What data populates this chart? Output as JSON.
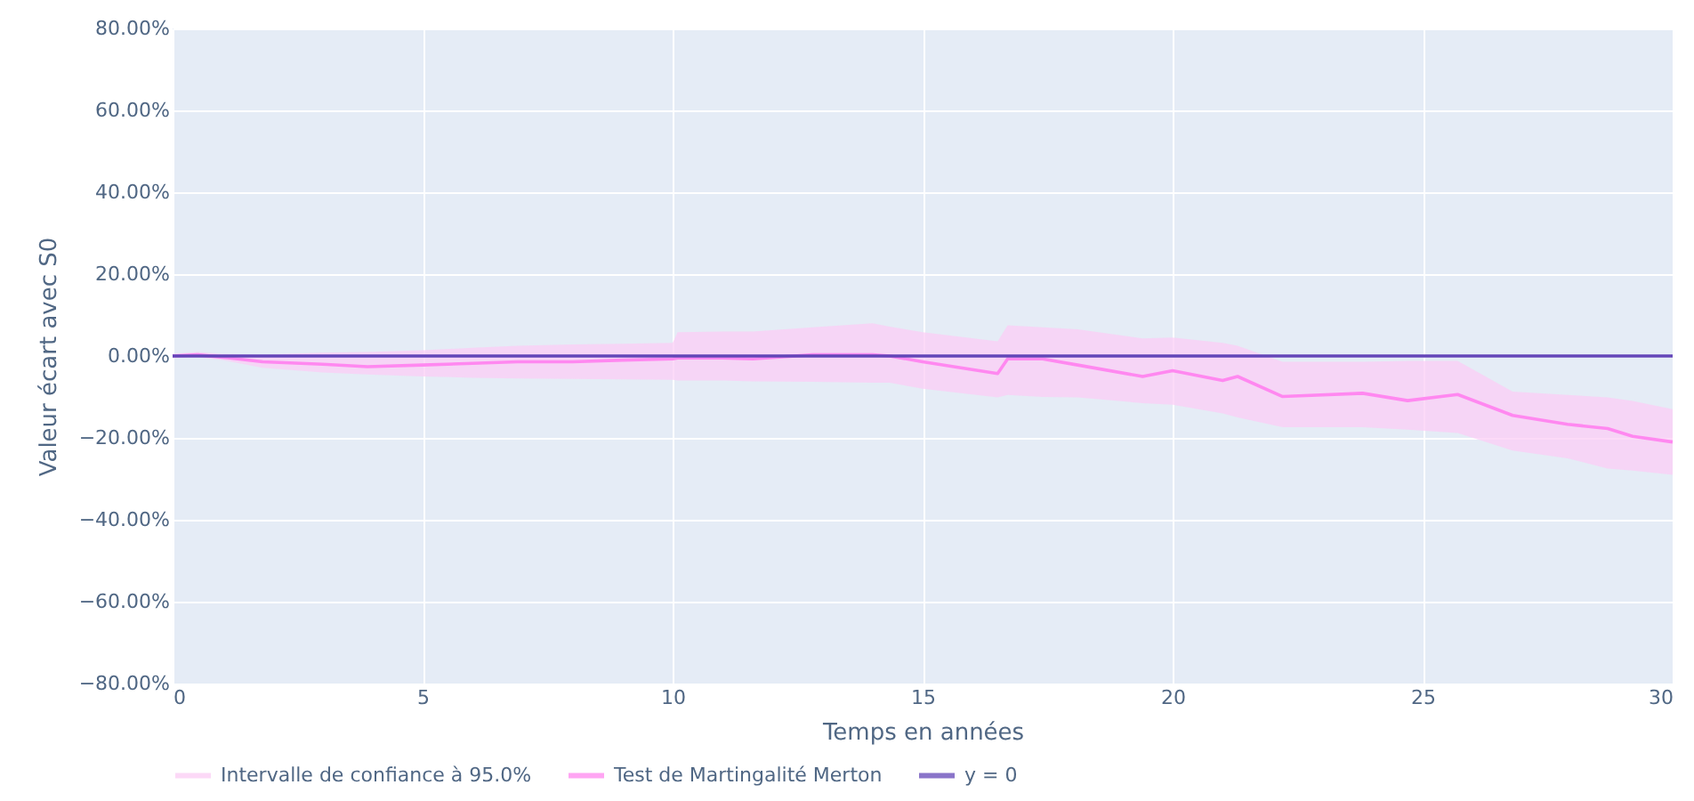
{
  "chart_data": {
    "type": "line",
    "xlabel": "Temps en années",
    "ylabel": "Valeur écart avec S0",
    "xlim": [
      0,
      30
    ],
    "xticks": [
      0,
      5,
      10,
      15,
      20,
      25,
      30
    ],
    "ylim": [
      -80,
      80
    ],
    "yticks": [
      {
        "value": -80,
        "label": "−80.00%"
      },
      {
        "value": -60,
        "label": "−60.00%"
      },
      {
        "value": -40,
        "label": "−40.00%"
      },
      {
        "value": -20,
        "label": "−20.00%"
      },
      {
        "value": 0,
        "label": "0.00%"
      },
      {
        "value": 20,
        "label": "20.00%"
      },
      {
        "value": 40,
        "label": "40.00%"
      },
      {
        "value": 60,
        "label": "60.00%"
      },
      {
        "value": 80,
        "label": "80.00%"
      }
    ],
    "grid": true,
    "legend": "bottom",
    "series": [
      {
        "name": "Intervalle de confiance à 95.0%",
        "type": "area",
        "color": "#fbcdf5",
        "x": [
          0,
          0.5,
          1,
          1.8,
          3,
          3.9,
          5,
          6,
          6.9,
          8,
          9,
          10,
          10.1,
          11,
          11.6,
          12.8,
          14,
          14.34,
          15,
          16.5,
          16.7,
          17.4,
          18.1,
          19.4,
          20,
          21,
          21.3,
          22.2,
          23.8,
          24.7,
          25.7,
          26.8,
          27.9,
          28.7,
          29.2,
          30
        ],
        "lower": [
          -0.5,
          -0.3,
          -1,
          -2.9,
          -4,
          -4.5,
          -5,
          -5.3,
          -5.5,
          -5.6,
          -5.7,
          -5.8,
          -6,
          -6,
          -6.2,
          -6.3,
          -6.5,
          -6.5,
          -8,
          -10.1,
          -9.5,
          -10,
          -10.1,
          -11.5,
          -11.9,
          -14,
          -15,
          -17.4,
          -17.4,
          -18,
          -18.8,
          -23.1,
          -25,
          -27.5,
          -28,
          -29
        ],
        "upper": [
          0.5,
          1,
          0.5,
          0.3,
          0.8,
          1,
          1.4,
          2,
          2.5,
          2.8,
          3,
          3.2,
          5.8,
          6,
          6,
          7,
          8,
          7.2,
          5.8,
          3.6,
          7.5,
          7,
          6.5,
          4.3,
          4.5,
          3.2,
          2.5,
          -1.4,
          -1.4,
          -1.2,
          -1.2,
          -8.7,
          -9.5,
          -10.1,
          -11,
          -13
        ],
        "values": [
          null,
          null,
          null,
          null,
          null,
          null,
          null,
          null,
          null,
          null,
          null,
          null,
          null,
          null,
          null,
          null,
          null,
          null,
          null,
          null,
          null,
          null,
          null,
          null,
          null,
          null,
          null,
          null,
          null,
          null,
          null,
          null,
          null,
          null,
          null,
          null
        ]
      },
      {
        "name": "Test de Martingalité Merton",
        "color": "#ff88f0",
        "x": [
          0,
          0.5,
          1,
          1.8,
          3,
          3.9,
          5,
          6,
          6.9,
          8,
          9,
          10,
          10.1,
          11,
          11.6,
          12.8,
          14,
          14.34,
          15,
          16.5,
          16.7,
          17.4,
          18.1,
          19.4,
          20,
          21,
          21.3,
          22.2,
          23.8,
          24.7,
          25.7,
          26.8,
          27.9,
          28.7,
          29.2,
          30
        ],
        "values": [
          0,
          0.3,
          -0.3,
          -1.4,
          -2,
          -2.6,
          -2.2,
          -1.8,
          -1.4,
          -1.4,
          -1,
          -0.7,
          -0.5,
          -0.5,
          -0.7,
          0.3,
          0.3,
          0,
          -1.4,
          -4.3,
          -0.7,
          -0.7,
          -2.2,
          -5,
          -3.6,
          -6,
          -5,
          -9.9,
          -9.1,
          -10.9,
          -9.4,
          -14.5,
          -16.7,
          -17.7,
          -19.6,
          -21
        ]
      },
      {
        "name": "y = 0",
        "color": "#6346b8",
        "x": [
          0,
          30
        ],
        "values": [
          0,
          0
        ]
      }
    ]
  }
}
